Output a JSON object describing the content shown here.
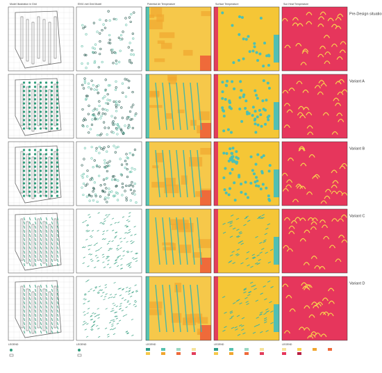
{
  "columns": [
    "Model Illustration in Grid",
    "ENVI-met Grid Model",
    "Potential Air Temperature",
    "Surface Temperature",
    "Sun Heat Temperature"
  ],
  "rows": [
    "Pre-Design situation",
    "Variant A",
    "Variant B",
    "Variant C",
    "Variant D"
  ],
  "legend_title": "LEGEND"
}
